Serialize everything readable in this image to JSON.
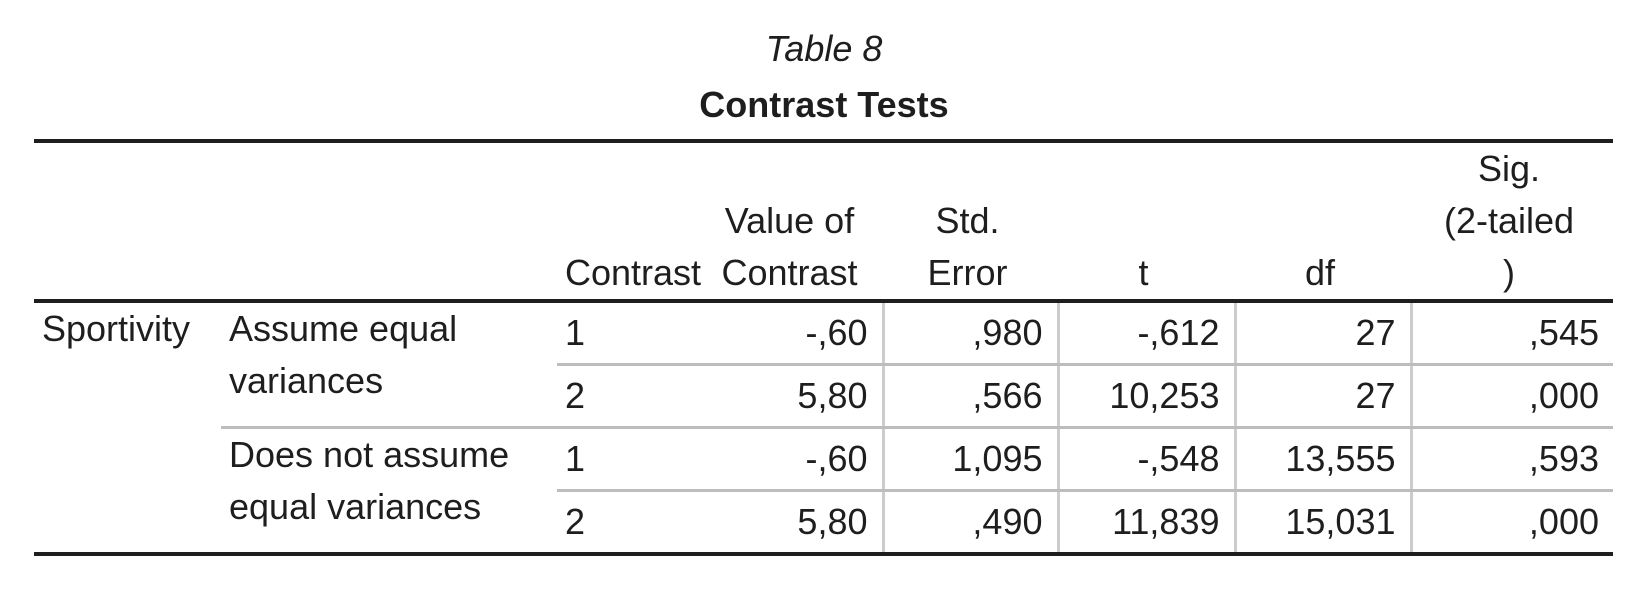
{
  "caption": {
    "table_number": "Table 8",
    "title": "Contrast Tests"
  },
  "table": {
    "columns": [
      "",
      "",
      "Contrast",
      "Value of Contrast",
      "Std. Error",
      "t",
      "df",
      "Sig. (2-tailed)"
    ],
    "header_lines": {
      "contrast": [
        "Contrast"
      ],
      "value": [
        "Value of",
        "Contrast"
      ],
      "std_error": [
        "Std.",
        "Error"
      ],
      "t": [
        "t"
      ],
      "df": [
        "df"
      ],
      "sig": [
        "Sig.",
        "(2-tailed",
        ")"
      ]
    },
    "variable": "Sportivity",
    "groups": [
      {
        "label_lines": [
          "Assume equal",
          "variances"
        ],
        "rows": [
          {
            "contrast": "1",
            "value": "-,60",
            "std_error": ",980",
            "t": "-,612",
            "df": "27",
            "sig": ",545"
          },
          {
            "contrast": "2",
            "value": "5,80",
            "std_error": ",566",
            "t": "10,253",
            "df": "27",
            "sig": ",000"
          }
        ]
      },
      {
        "label_lines": [
          "Does not assume",
          "equal variances"
        ],
        "rows": [
          {
            "contrast": "1",
            "value": "-,60",
            "std_error": "1,095",
            "t": "-,548",
            "df": "13,555",
            "sig": ",593"
          },
          {
            "contrast": "2",
            "value": "5,80",
            "std_error": ",490",
            "t": "11,839",
            "df": "15,031",
            "sig": ",000"
          }
        ]
      }
    ]
  }
}
